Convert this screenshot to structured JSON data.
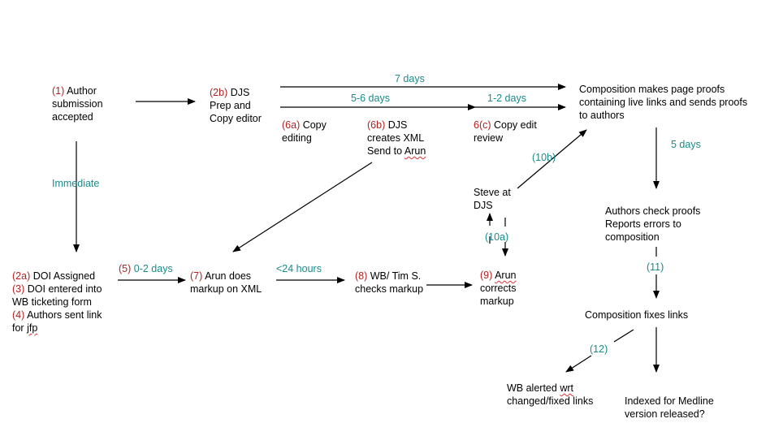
{
  "colors": {
    "step_number": "#b22222",
    "timing": "#1a8a8a",
    "text": "#000000",
    "arrow": "#000000"
  },
  "nodes": {
    "author_submission": {
      "num": "(1)",
      "l1": " Author",
      "l2": "submission",
      "l3": "accepted"
    },
    "djs_prep": {
      "num": "(2b)",
      "l1": " DJS",
      "l2": "Prep and",
      "l3": "Copy editor"
    },
    "composition_proofs": {
      "l1": "Composition makes page proofs",
      "l2": "containing live links and sends proofs",
      "l3": "to authors"
    },
    "copy_editing": {
      "num": "(6a)",
      "l1": " Copy",
      "l2": "editing"
    },
    "djs_xml": {
      "num": "(6b)",
      "l1": " DJS",
      "l2": "creates XML",
      "l3a": "Send to ",
      "l3b": "Arun"
    },
    "copy_edit_review": {
      "num": "6(c)",
      "l1": " Copy edit",
      "l2": "review"
    },
    "steve": {
      "l1": "Steve at",
      "l2": "DJS"
    },
    "authors_check": {
      "l1": "Authors check proofs",
      "l2": "Reports errors to",
      "l3": "composition"
    },
    "doi_block": {
      "n1": "(2a)",
      "t1": " DOI Assigned",
      "n2": "(3)",
      "t2": " DOI entered into",
      "t3": "WB ticketing form",
      "n4": "(4)",
      "t4": " Authors sent link",
      "t5a": "for ",
      "t5b": "jfp"
    },
    "arun_markup": {
      "num": "(7)",
      "l1": " Arun does",
      "l2": "markup on XML"
    },
    "wb_tim": {
      "num": "(8)",
      "l1": " WB/ Tim S.",
      "l2": "checks markup"
    },
    "arun_corrects": {
      "num": "(9)",
      "l1a": " ",
      "l1b": "Arun",
      "l2": "corrects",
      "l3": "markup"
    },
    "composition_fixes": {
      "l1": "Composition fixes links"
    },
    "wb_alerted": {
      "l1a": "WB alerted ",
      "l1b": "wrt",
      "l2": "changed/fixed links"
    },
    "indexed": {
      "l1": "Indexed for Medline",
      "l2": "version released?"
    }
  },
  "timing_labels": {
    "t_7days": "7 days",
    "t_56days": "5-6 days",
    "t_12days": "1-2 days",
    "t_immediate": "Immediate",
    "t_5days": "5 days",
    "t_lt24": "<24 hours"
  },
  "step_labels": {
    "s5_num": "(5)",
    "s5_text": " 0-2 days",
    "s10a": "(10a)",
    "s10b": "(10b)",
    "s11": "(11)",
    "s12": "(12)"
  }
}
